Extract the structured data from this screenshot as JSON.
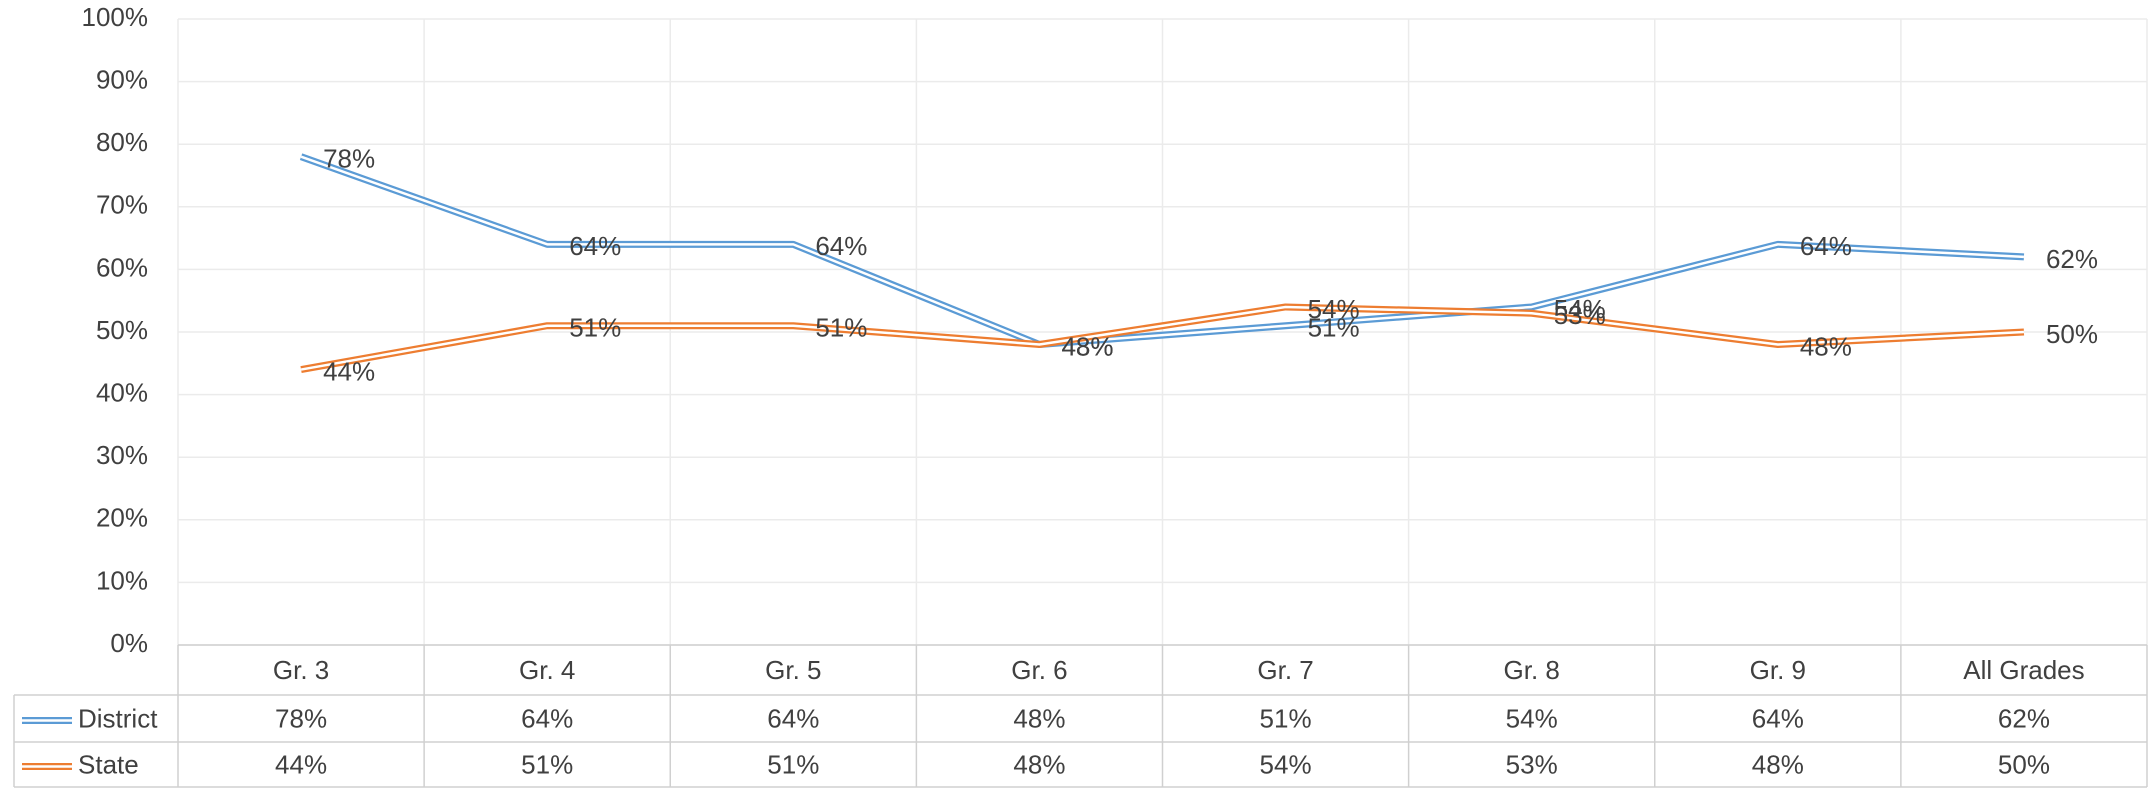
{
  "chart_data": {
    "type": "line",
    "categories": [
      "Gr. 3",
      "Gr. 4",
      "Gr. 5",
      "Gr. 6",
      "Gr. 7",
      "Gr. 8",
      "Gr. 9",
      "All Grades"
    ],
    "series": [
      {
        "name": "District",
        "color": "#5b9bd5",
        "values": [
          78,
          64,
          64,
          48,
          51,
          54,
          64,
          62
        ],
        "value_labels": [
          "78%",
          "64%",
          "64%",
          "48%",
          "51%",
          "54%",
          "64%",
          "62%"
        ]
      },
      {
        "name": "State",
        "color": "#ed7d31",
        "values": [
          44,
          51,
          51,
          48,
          54,
          53,
          48,
          50
        ],
        "value_labels": [
          "44%",
          "51%",
          "51%",
          "48%",
          "54%",
          "53%",
          "48%",
          "50%"
        ]
      }
    ],
    "ylim": [
      0,
      100
    ],
    "yticks": [
      {
        "value": 0,
        "label": "0%"
      },
      {
        "value": 10,
        "label": "10%"
      },
      {
        "value": 20,
        "label": "20%"
      },
      {
        "value": 30,
        "label": "30%"
      },
      {
        "value": 40,
        "label": "40%"
      },
      {
        "value": 50,
        "label": "50%"
      },
      {
        "value": 60,
        "label": "60%"
      },
      {
        "value": 70,
        "label": "70%"
      },
      {
        "value": 80,
        "label": "80%"
      },
      {
        "value": 90,
        "label": "90%"
      },
      {
        "value": 100,
        "label": "100%"
      }
    ],
    "grid": true
  }
}
